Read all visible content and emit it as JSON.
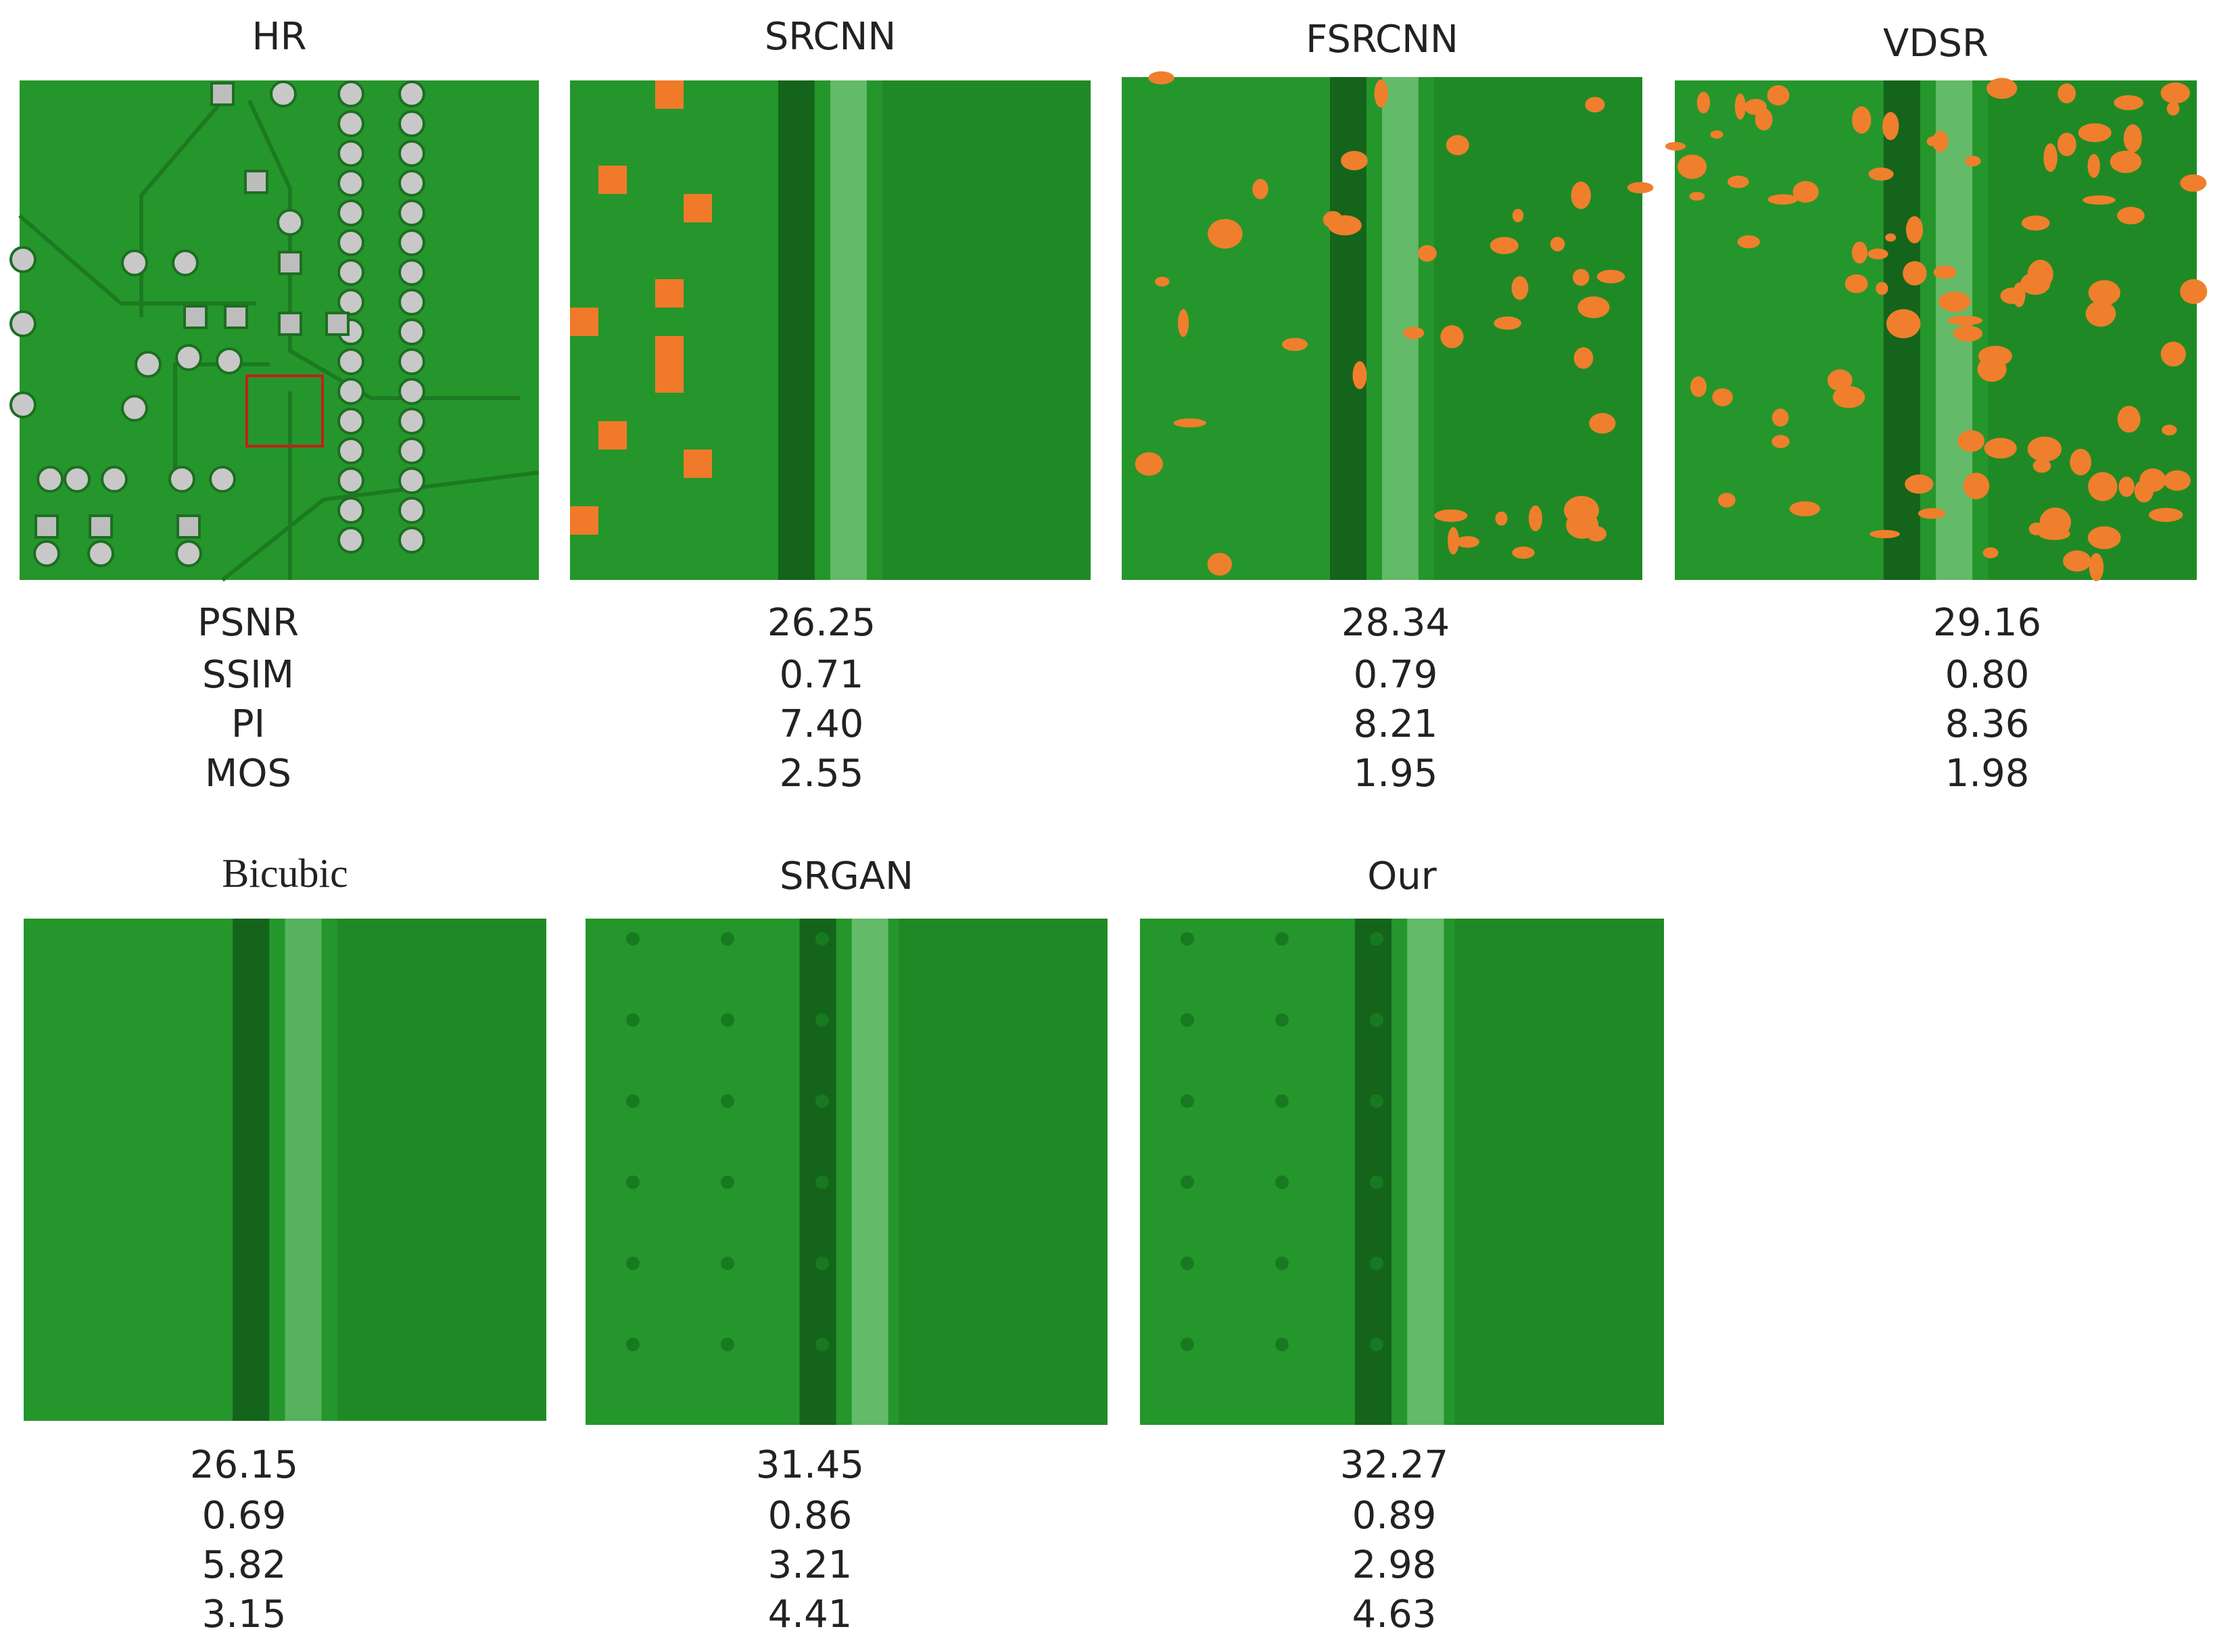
{
  "metric_labels": [
    "PSNR",
    "SSIM",
    "PI",
    "MOS"
  ],
  "panels": [
    {
      "title": "HR"
    },
    {
      "title": "SRCNN",
      "metrics": [
        "26.25",
        "0.71",
        "7.40",
        "2.55"
      ]
    },
    {
      "title": "FSRCNN",
      "metrics": [
        "28.34",
        "0.79",
        "8.21",
        "1.95"
      ]
    },
    {
      "title": "VDSR",
      "metrics": [
        "29.16",
        "0.80",
        "8.36",
        "1.98"
      ]
    },
    {
      "title": "Bicubic",
      "metrics": [
        "26.15",
        "0.69",
        "5.82",
        "3.15"
      ]
    },
    {
      "title": "SRGAN",
      "metrics": [
        "31.45",
        "0.86",
        "3.21",
        "4.41"
      ]
    },
    {
      "title": "Our",
      "metrics": [
        "32.27",
        "0.89",
        "2.98",
        "4.63"
      ]
    }
  ]
}
